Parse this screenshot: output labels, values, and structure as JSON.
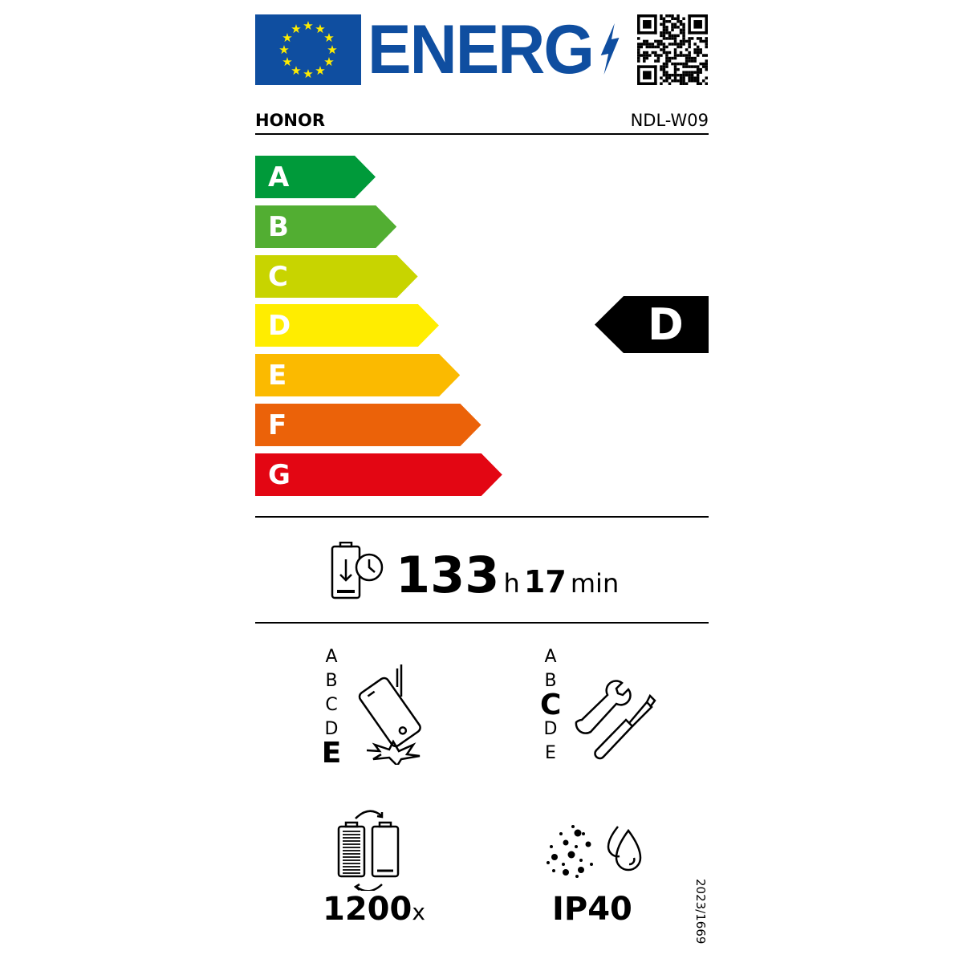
{
  "header": {
    "logo_text": "ENERG",
    "brand": "HONOR",
    "model": "NDL-W09"
  },
  "colors": {
    "eu_blue": "#0f4ea0",
    "A": "#009a3a",
    "B": "#52ae32",
    "C": "#c8d400",
    "D": "#ffed00",
    "E": "#fbba00",
    "F": "#eb6209",
    "G": "#e30613"
  },
  "energy_scale": [
    "A",
    "B",
    "C",
    "D",
    "E",
    "F",
    "G"
  ],
  "energy_class": "D",
  "endurance": {
    "hours": "133",
    "hours_unit": "h",
    "minutes": "17",
    "minutes_unit": "min",
    "icon": "battery-clock-icon"
  },
  "drop_reliability": {
    "scale": [
      "A",
      "B",
      "C",
      "D",
      "E"
    ],
    "selected": "E",
    "icon": "phone-drop-icon"
  },
  "repairability": {
    "scale": [
      "A",
      "B",
      "C",
      "D",
      "E"
    ],
    "selected": "C",
    "icon": "wrench-screwdriver-icon"
  },
  "battery_cycles": {
    "value": "1200",
    "unit": "x",
    "icon": "battery-cycle-icon"
  },
  "ingress": {
    "value": "IP40",
    "icon": "dust-water-icon"
  },
  "regulation": "2023/1669"
}
